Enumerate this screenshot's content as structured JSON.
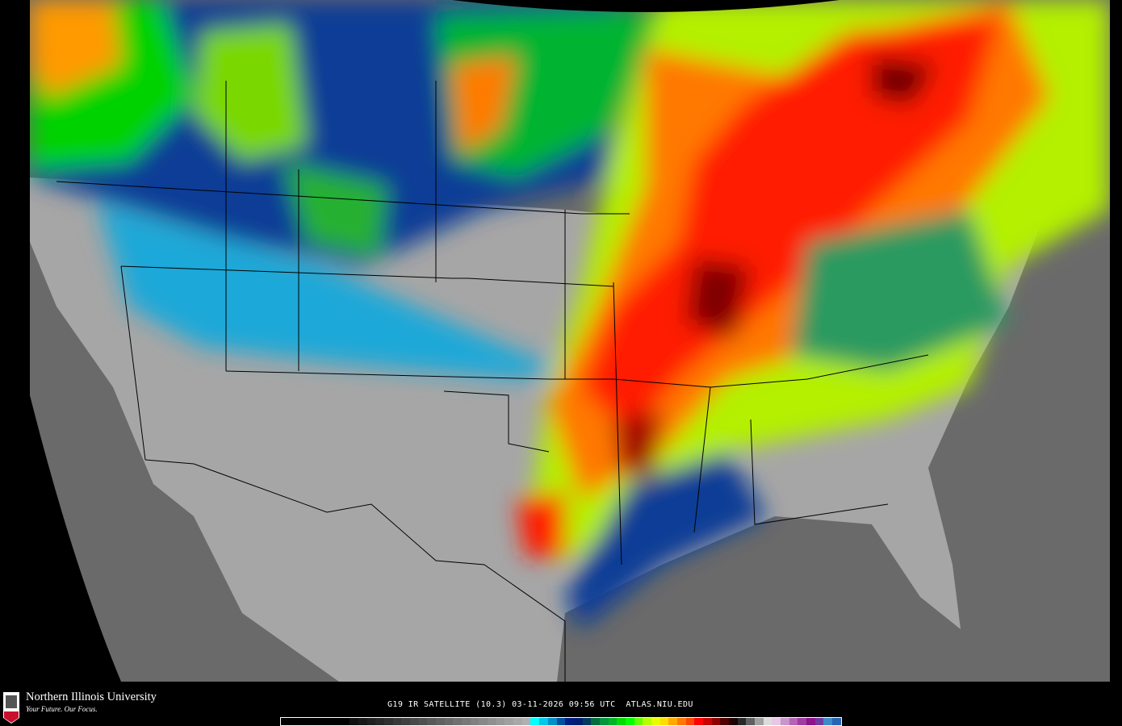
{
  "footer": {
    "logo": {
      "name": "Northern Illinois University",
      "tagline": "Your Future. Our Focus.",
      "badge": "NIU"
    },
    "caption": "G19 IR SATELLITE (10.3) 03-11-2026 09:56 UTC  ATLAS.NIU.EDU"
  },
  "colorbar": {
    "colors": [
      "#000000",
      "#000000",
      "#000000",
      "#000000",
      "#000000",
      "#000000",
      "#000000",
      "#000000",
      "#101010",
      "#181818",
      "#202020",
      "#282828",
      "#303030",
      "#383838",
      "#404040",
      "#484848",
      "#505050",
      "#585858",
      "#606060",
      "#686868",
      "#707070",
      "#787878",
      "#808080",
      "#888888",
      "#909090",
      "#989898",
      "#a0a0a0",
      "#a8a8a8",
      "#b0b0b0",
      "#00ffff",
      "#00c8e6",
      "#0090c8",
      "#0050a0",
      "#001e82",
      "#001e6e",
      "#003c5a",
      "#006e3c",
      "#00963c",
      "#00b428",
      "#00dc00",
      "#00ff00",
      "#64ff00",
      "#b4ff00",
      "#e6ff00",
      "#ffdc00",
      "#ffaa00",
      "#ff7800",
      "#ff4600",
      "#ff0000",
      "#c80000",
      "#8c0000",
      "#500000",
      "#1e0000",
      "#282828",
      "#606060",
      "#a0a0a0",
      "#dcdcdc",
      "#e6c8e6",
      "#c896c8",
      "#b464b4",
      "#a03ca0",
      "#8c148c",
      "#6e3ca0",
      "#3c8cc8",
      "#2864b4"
    ]
  },
  "map_colors": {
    "clear_land": "#a8a8a8",
    "ocean": "#6e6e6e",
    "cold_tops": "#ff0000",
    "mid_tops": "#00ff00",
    "low_tops": "#003c96"
  }
}
